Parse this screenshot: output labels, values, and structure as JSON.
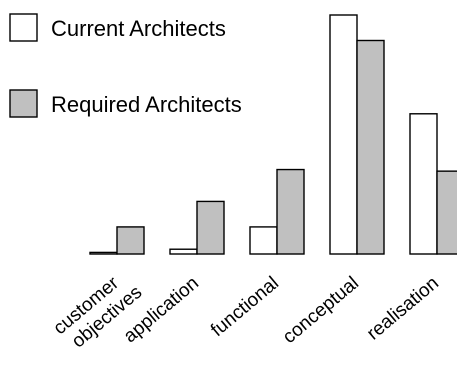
{
  "chart_data": {
    "type": "bar",
    "title": "",
    "xlabel": "",
    "ylabel": "",
    "categories": [
      [
        "customer",
        "objectives"
      ],
      [
        "application"
      ],
      [
        "functional"
      ],
      [
        "conceptual"
      ],
      [
        "realisation"
      ]
    ],
    "series": [
      {
        "name": "Current Architects",
        "color": "#ffffff",
        "values": [
          1,
          3,
          17,
          150,
          88
        ]
      },
      {
        "name": "Required Architects",
        "color": "#c0c0c0",
        "values": [
          17,
          33,
          53,
          134,
          52
        ]
      }
    ],
    "ylim": [
      0,
      150
    ],
    "grid": false,
    "legend_position": "top-left"
  }
}
